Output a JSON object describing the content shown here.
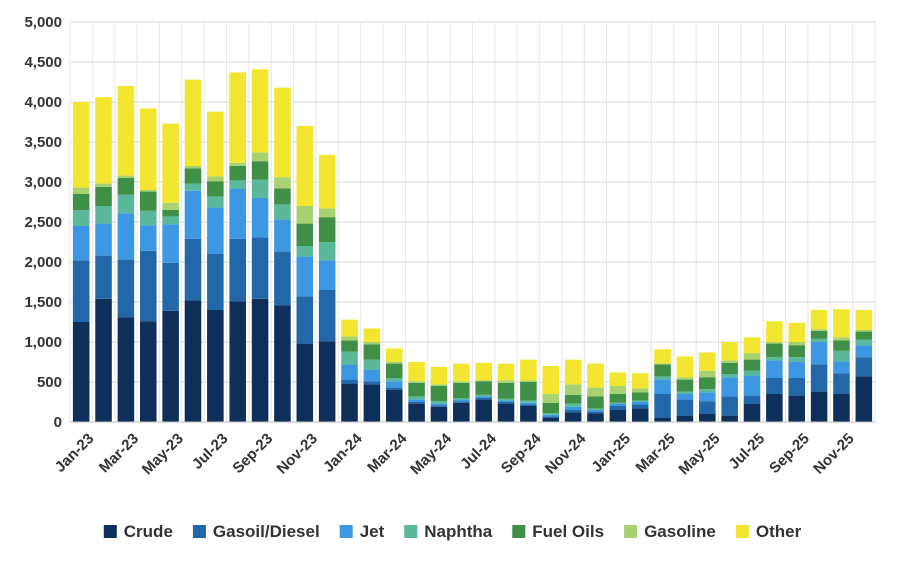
{
  "chart_data": {
    "type": "bar",
    "stacked": true,
    "title": "",
    "xlabel": "",
    "ylabel": "",
    "ylim": [
      0,
      5000
    ],
    "yticks": [
      0,
      500,
      1000,
      1500,
      2000,
      2500,
      3000,
      3500,
      4000,
      4500,
      5000
    ],
    "ytick_labels": [
      "0",
      "500",
      "1,000",
      "1,500",
      "2,000",
      "2,500",
      "3,000",
      "3,500",
      "4,000",
      "4,500",
      "5,000"
    ],
    "grid": true,
    "legend_position": "bottom",
    "categories": [
      "Jan-23",
      "Feb-23",
      "Mar-23",
      "Apr-23",
      "May-23",
      "Jun-23",
      "Jul-23",
      "Aug-23",
      "Sep-23",
      "Oct-23",
      "Nov-23",
      "Dec-23",
      "Jan-24",
      "Feb-24",
      "Mar-24",
      "Apr-24",
      "May-24",
      "Jun-24",
      "Jul-24",
      "Aug-24",
      "Sep-24",
      "Oct-24",
      "Nov-24",
      "Dec-24",
      "Jan-25",
      "Feb-25",
      "Mar-25",
      "Apr-25",
      "May-25",
      "Jun-25",
      "Jul-25",
      "Aug-25",
      "Sep-25",
      "Oct-25",
      "Nov-25",
      "Dec-25"
    ],
    "x_tick_labels": [
      "Jan-23",
      "Mar-23",
      "May-23",
      "Jul-23",
      "Sep-23",
      "Nov-23",
      "Jan-24",
      "Mar-24",
      "May-24",
      "Jul-24",
      "Sep-24",
      "Nov-24",
      "Jan-25",
      "Mar-25",
      "May-25",
      "Jul-25",
      "Sep-25",
      "Nov-25"
    ],
    "series": [
      {
        "name": "Crude",
        "color": "#0d2f5a",
        "values": [
          1250,
          1540,
          1310,
          1260,
          1390,
          1520,
          1400,
          1510,
          1540,
          1460,
          980,
          1010,
          480,
          470,
          400,
          230,
          190,
          240,
          280,
          230,
          200,
          50,
          120,
          110,
          150,
          170,
          50,
          80,
          100,
          80,
          230,
          350,
          330,
          380,
          350,
          570
        ]
      },
      {
        "name": "Gasoil/Diesel",
        "color": "#2268a8",
        "values": [
          770,
          540,
          720,
          880,
          600,
          770,
          700,
          780,
          770,
          670,
          590,
          640,
          50,
          40,
          30,
          20,
          20,
          20,
          20,
          20,
          20,
          20,
          30,
          20,
          50,
          50,
          300,
          200,
          160,
          240,
          100,
          200,
          220,
          340,
          260,
          240
        ]
      },
      {
        "name": "Jet",
        "color": "#3e97e3",
        "values": [
          430,
          400,
          580,
          320,
          480,
          600,
          580,
          630,
          490,
          400,
          500,
          370,
          190,
          140,
          80,
          30,
          20,
          20,
          20,
          20,
          20,
          20,
          40,
          20,
          30,
          30,
          180,
          70,
          110,
          240,
          250,
          220,
          200,
          280,
          150,
          150
        ]
      },
      {
        "name": "Naphtha",
        "color": "#5bb89a",
        "values": [
          200,
          220,
          230,
          180,
          100,
          90,
          140,
          100,
          230,
          190,
          130,
          230,
          160,
          130,
          40,
          40,
          30,
          20,
          20,
          20,
          30,
          20,
          40,
          20,
          10,
          20,
          40,
          30,
          40,
          40,
          60,
          40,
          60,
          40,
          130,
          70
        ]
      },
      {
        "name": "Fuel Oils",
        "color": "#3f8f47",
        "values": [
          200,
          240,
          210,
          240,
          80,
          190,
          190,
          180,
          230,
          200,
          280,
          310,
          140,
          190,
          180,
          170,
          190,
          190,
          170,
          200,
          230,
          130,
          110,
          150,
          110,
          100,
          150,
          150,
          150,
          140,
          140,
          170,
          150,
          100,
          130,
          100
        ]
      },
      {
        "name": "Gasoline",
        "color": "#a8d16f",
        "values": [
          80,
          40,
          30,
          20,
          90,
          30,
          60,
          40,
          110,
          140,
          220,
          110,
          50,
          30,
          20,
          20,
          20,
          20,
          10,
          30,
          20,
          110,
          130,
          110,
          100,
          50,
          10,
          30,
          80,
          30,
          80,
          20,
          40,
          20,
          40,
          20
        ]
      },
      {
        "name": "Other",
        "color": "#f2e630",
        "values": [
          1070,
          1080,
          1120,
          1020,
          990,
          1080,
          810,
          1130,
          1040,
          1120,
          1000,
          670,
          210,
          170,
          170,
          240,
          220,
          220,
          220,
          210,
          260,
          350,
          310,
          300,
          170,
          190,
          180,
          260,
          230,
          230,
          200,
          260,
          240,
          240,
          350,
          250
        ]
      }
    ]
  }
}
